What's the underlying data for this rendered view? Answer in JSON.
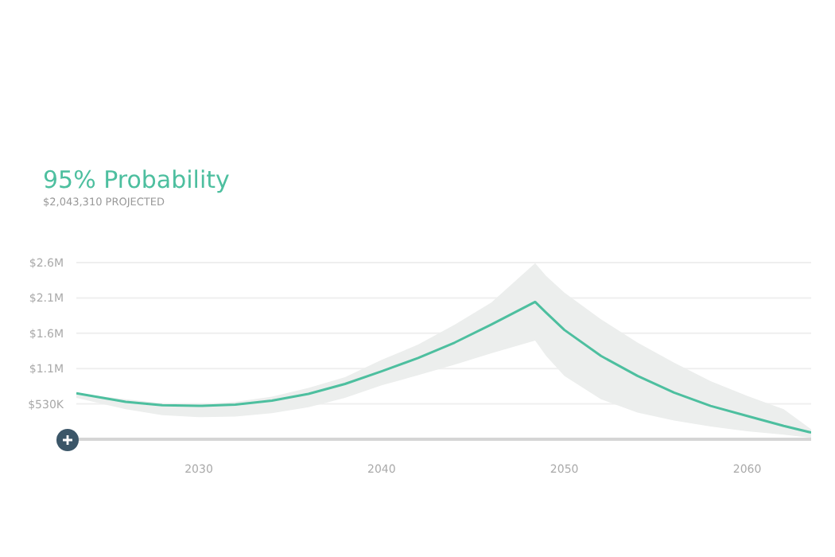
{
  "chart_data": {
    "type": "line",
    "title": "95% Probability",
    "subtitle": "$2,043,310 PROJECTED",
    "x": [
      2023.3,
      2026,
      2028,
      2030,
      2032,
      2034,
      2036,
      2038,
      2040,
      2042,
      2044,
      2046,
      2048.4,
      2049,
      2050,
      2052,
      2054,
      2056,
      2058,
      2060,
      2062,
      2063.5
    ],
    "series": [
      {
        "color": "#4dbf9f",
        "values": [
          690000,
          560000,
          510000,
          500000,
          520000,
          580000,
          680000,
          830000,
          1020000,
          1220000,
          1450000,
          1720000,
          2060000,
          1900000,
          1640000,
          1250000,
          950000,
          700000,
          500000,
          350000,
          200000,
          100000
        ],
        "lower": [
          620000,
          450000,
          360000,
          330000,
          340000,
          390000,
          480000,
          620000,
          810000,
          960000,
          1120000,
          1290000,
          1480000,
          1250000,
          950000,
          600000,
          400000,
          280000,
          190000,
          120000,
          70000,
          20000
        ],
        "upper": [
          690000,
          600000,
          540000,
          520000,
          560000,
          640000,
          770000,
          930000,
          1190000,
          1420000,
          1720000,
          2050000,
          2640000,
          2450000,
          2200000,
          1800000,
          1450000,
          1150000,
          870000,
          650000,
          450000,
          150000
        ]
      }
    ],
    "xlim": [
      2023.3,
      2063.5
    ],
    "xticks": [
      2030,
      2040,
      2050,
      2060
    ],
    "ylim": [
      0,
      2650000
    ],
    "yticks": [
      {
        "value": 530000,
        "label": "$530K"
      },
      {
        "value": 1060000,
        "label": "$1.1M"
      },
      {
        "value": 1590000,
        "label": "$1.6M"
      },
      {
        "value": 2120000,
        "label": "$2.1M"
      },
      {
        "value": 2650000,
        "label": "$2.6M"
      }
    ],
    "grid": "y",
    "marker": "none",
    "line_style": "solid"
  }
}
